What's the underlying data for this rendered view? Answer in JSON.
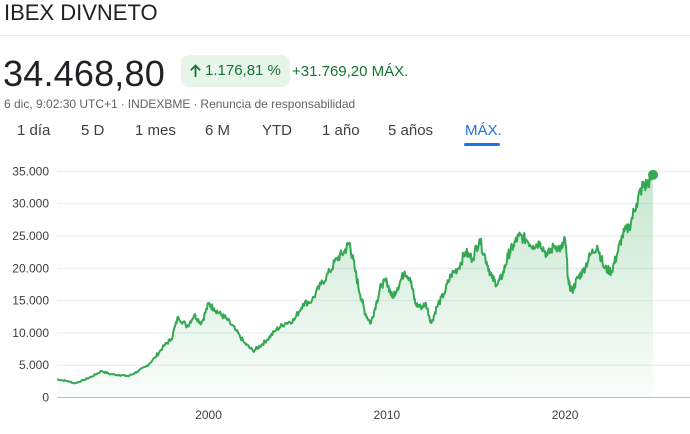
{
  "header": {
    "title": "IBEX DIVNETO"
  },
  "quote": {
    "price": "34.468,80",
    "change_percent": "1.176,81 %",
    "change_absolute": "+31.769,20",
    "period_label": "MÁX.",
    "direction_icon": "arrow-up-icon",
    "positive_color": "#137333",
    "positive_bg": "#e6f4ea"
  },
  "meta": {
    "timestamp": "6 dic, 9:02:30 UTC+1",
    "separator": "·",
    "exchange": "INDEXBME",
    "disclaimer": "Renuncia de responsabilidad"
  },
  "tabs": [
    {
      "label": "1 día",
      "active": false
    },
    {
      "label": "5 D",
      "active": false
    },
    {
      "label": "1 mes",
      "active": false
    },
    {
      "label": "6 M",
      "active": false
    },
    {
      "label": "YTD",
      "active": false
    },
    {
      "label": "1 año",
      "active": false
    },
    {
      "label": "5 años",
      "active": false
    },
    {
      "label": "MÁX.",
      "active": true
    }
  ],
  "chart_data": {
    "type": "area",
    "title": "",
    "xlabel": "",
    "ylabel": "",
    "x_tick_labels": [
      "2000",
      "2010",
      "2020"
    ],
    "y_tick_labels": [
      "0",
      "5.000",
      "10.000",
      "15.000",
      "20.000",
      "25.000",
      "30.000",
      "35.000"
    ],
    "y_ticks": [
      0,
      5000,
      10000,
      15000,
      20000,
      25000,
      30000,
      35000
    ],
    "x_ticks": [
      2000,
      2010,
      2020
    ],
    "xlim": [
      1991.5,
      2024.93
    ],
    "ylim": [
      0,
      37000
    ],
    "grid": true,
    "line_color": "#34a853",
    "series": [
      {
        "x": [
          1991.5,
          1992.0,
          1992.5,
          1993.0,
          1993.5,
          1994.0,
          1994.5,
          1995.0,
          1995.5,
          1996.0,
          1996.5,
          1997.0,
          1997.5,
          1997.9,
          1998.3,
          1998.8,
          1999.2,
          1999.6,
          2000.0,
          2000.3,
          2000.7,
          2001.0,
          2001.5,
          2002.0,
          2002.5,
          2002.9,
          2003.3,
          2003.8,
          2004.3,
          2004.8,
          2005.3,
          2005.8,
          2006.3,
          2006.8,
          2007.2,
          2007.6,
          2007.9,
          2008.2,
          2008.5,
          2008.8,
          2009.1,
          2009.4,
          2009.7,
          2010.0,
          2010.3,
          2010.6,
          2011.0,
          2011.3,
          2011.6,
          2011.9,
          2012.2,
          2012.5,
          2012.8,
          2013.2,
          2013.6,
          2014.0,
          2014.4,
          2014.8,
          2015.2,
          2015.6,
          2015.9,
          2016.2,
          2016.5,
          2016.8,
          2017.1,
          2017.4,
          2017.8,
          2018.2,
          2018.6,
          2019.0,
          2019.4,
          2019.8,
          2020.0,
          2020.2,
          2020.4,
          2020.7,
          2021.0,
          2021.4,
          2021.8,
          2022.2,
          2022.6,
          2022.9,
          2023.2,
          2023.6,
          2024.0,
          2024.3,
          2024.6,
          2024.93
        ],
        "values": [
          2800,
          2600,
          2200,
          2700,
          3300,
          4100,
          3600,
          3500,
          3300,
          4000,
          4800,
          6200,
          8000,
          9000,
          12500,
          11000,
          12800,
          11500,
          14500,
          13800,
          12800,
          12200,
          10500,
          8500,
          7200,
          8000,
          9000,
          10500,
          11500,
          12000,
          14500,
          15000,
          17500,
          19500,
          21500,
          22500,
          24000,
          20000,
          16000,
          13000,
          11500,
          14500,
          17500,
          18000,
          15500,
          17000,
          19500,
          18500,
          14500,
          14000,
          14500,
          11500,
          14000,
          16000,
          19000,
          20000,
          22500,
          21500,
          24500,
          21000,
          18500,
          17500,
          19000,
          22000,
          23500,
          25000,
          24500,
          23500,
          24000,
          22000,
          23500,
          23000,
          24500,
          17500,
          16500,
          18500,
          19500,
          22000,
          23500,
          20000,
          19500,
          22000,
          25000,
          26500,
          30000,
          32500,
          33000,
          34468.8
        ]
      }
    ]
  }
}
